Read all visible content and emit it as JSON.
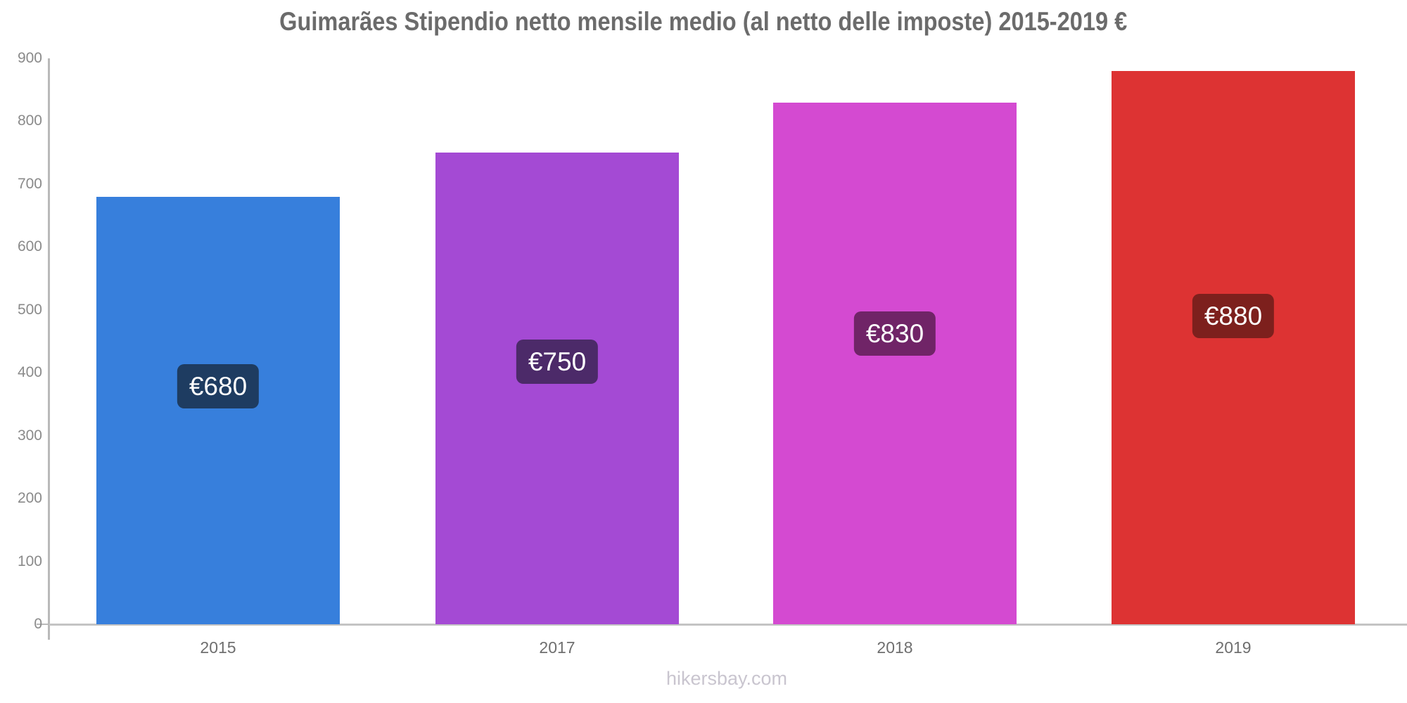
{
  "chart_data": {
    "type": "bar",
    "title": "Guimarães Stipendio netto mensile medio (al netto delle imposte) 2015-2019 €",
    "categories": [
      "2015",
      "2017",
      "2018",
      "2019"
    ],
    "values": [
      680,
      750,
      830,
      880
    ],
    "value_labels": [
      "€680",
      "€750",
      "€830",
      "€880"
    ],
    "bar_colors": [
      "#377fdc",
      "#a44ad4",
      "#d44ad1",
      "#dd3333"
    ],
    "badge_colors": [
      "#1e3c61",
      "#4c2a69",
      "#702467",
      "#7d201d"
    ],
    "ylim": [
      0,
      900
    ],
    "yticks": [
      0,
      100,
      200,
      300,
      400,
      500,
      600,
      700,
      800,
      900
    ],
    "xlabel": "",
    "ylabel": "",
    "grid": false,
    "legend": "none",
    "currency_symbol": "€"
  },
  "watermark": {
    "text": "hikersbay.com"
  },
  "colors": {
    "title": "#6b6b6b",
    "axis": "#bdbdbd",
    "y_tick_label": "#8a8a8a",
    "x_tick_label": "#6f6f6f",
    "watermark": "#c9c5cf"
  }
}
